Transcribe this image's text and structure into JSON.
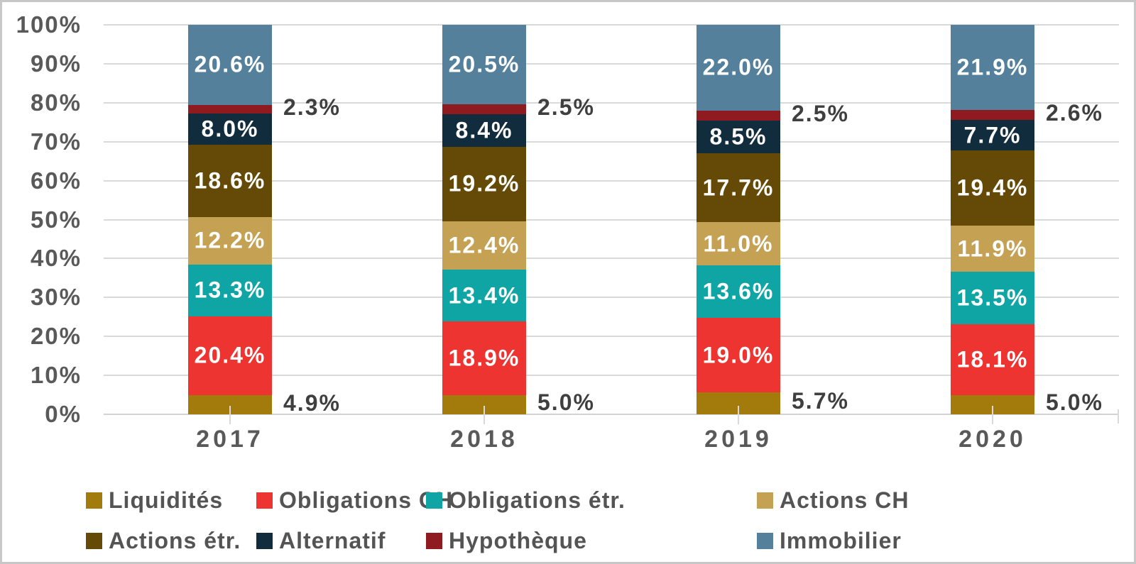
{
  "chart_data": {
    "type": "bar",
    "stacked": true,
    "orientation": "vertical",
    "title": "",
    "xlabel": "",
    "ylabel": "",
    "value_suffix": "%",
    "decimal_places": 1,
    "categories": [
      "2017",
      "2018",
      "2019",
      "2020"
    ],
    "series": [
      {
        "name": "Liquidités",
        "color": "#a37a0c",
        "label_position": "outside",
        "values": [
          4.9,
          5.0,
          5.7,
          5.0
        ]
      },
      {
        "name": "Obligations CH",
        "color": "#ee3431",
        "label_position": "inside",
        "values": [
          20.4,
          18.9,
          19.0,
          18.1
        ]
      },
      {
        "name": "Obligations étr.",
        "color": "#0fa5a5",
        "label_position": "inside",
        "values": [
          13.3,
          13.4,
          13.6,
          13.5
        ]
      },
      {
        "name": "Actions CH",
        "color": "#c5a154",
        "label_position": "inside",
        "values": [
          12.2,
          12.4,
          11.0,
          11.9
        ]
      },
      {
        "name": "Actions étr.",
        "color": "#654a07",
        "label_position": "inside",
        "values": [
          18.6,
          19.2,
          17.7,
          19.4
        ]
      },
      {
        "name": "Alternatif",
        "color": "#112c3d",
        "label_position": "inside",
        "values": [
          8.0,
          8.4,
          8.5,
          7.7
        ]
      },
      {
        "name": "Hypothèque",
        "color": "#8f1b20",
        "label_position": "outside",
        "values": [
          2.3,
          2.5,
          2.5,
          2.6
        ]
      },
      {
        "name": "Immobilier",
        "color": "#54809b",
        "label_position": "inside",
        "values": [
          20.6,
          20.5,
          22.0,
          21.9
        ]
      }
    ],
    "y_axis": {
      "min": 0,
      "max": 100,
      "tick_labels": [
        "0%",
        "10%",
        "20%",
        "30%",
        "40%",
        "50%",
        "60%",
        "70%",
        "80%",
        "90%",
        "100%"
      ]
    },
    "grid": true,
    "legend": {
      "position": "bottom",
      "rows": [
        [
          "Liquidités",
          "Obligations CH",
          "Obligations étr.",
          "Actions CH"
        ],
        [
          "Actions étr.",
          "Alternatif",
          "Hypothèque",
          "Immobilier"
        ]
      ]
    },
    "label_text_color_inside": "#ffffff",
    "label_text_color_outside": "#3f3f3f",
    "axis_text_color": "#595959",
    "gridline_color": "#d9d9d9"
  }
}
